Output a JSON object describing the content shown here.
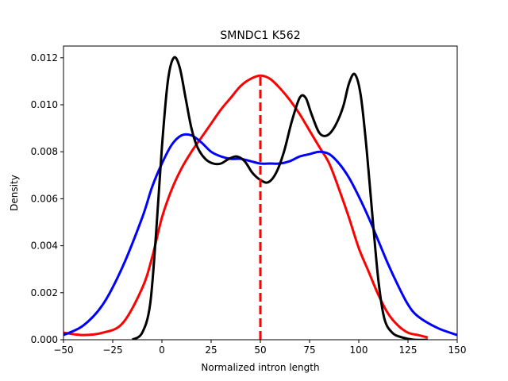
{
  "chart_data": {
    "type": "line",
    "title": "SMNDC1 K562",
    "xlabel": "Normalized intron length",
    "ylabel": "Density",
    "xlim": [
      -50,
      150
    ],
    "ylim": [
      0,
      0.0125
    ],
    "xticks": [
      "−50",
      "−25",
      "0",
      "25",
      "50",
      "75",
      "100",
      "125",
      "150"
    ],
    "xtick_values": [
      -50,
      -25,
      0,
      25,
      50,
      75,
      100,
      125,
      150
    ],
    "yticks": [
      "0.000",
      "0.002",
      "0.004",
      "0.006",
      "0.008",
      "0.010",
      "0.012"
    ],
    "ytick_values": [
      0,
      0.002,
      0.004,
      0.006,
      0.008,
      0.01,
      0.012
    ],
    "grid": false,
    "legend": "none",
    "series": [
      {
        "color": "#ff0000",
        "points": [
          [
            -50,
            0.0003
          ],
          [
            -40,
            0.0002
          ],
          [
            -30,
            0.0003
          ],
          [
            -20,
            0.0007
          ],
          [
            -10,
            0.0022
          ],
          [
            -5,
            0.0035
          ],
          [
            0,
            0.0052
          ],
          [
            5,
            0.0064
          ],
          [
            10,
            0.0073
          ],
          [
            15,
            0.008
          ],
          [
            20,
            0.0086
          ],
          [
            25,
            0.0092
          ],
          [
            30,
            0.0098
          ],
          [
            35,
            0.0103
          ],
          [
            40,
            0.0108
          ],
          [
            45,
            0.0111
          ],
          [
            50,
            0.01124
          ],
          [
            55,
            0.0111
          ],
          [
            60,
            0.0107
          ],
          [
            65,
            0.0102
          ],
          [
            70,
            0.0096
          ],
          [
            75,
            0.0089
          ],
          [
            80,
            0.0082
          ],
          [
            85,
            0.0075
          ],
          [
            90,
            0.0064
          ],
          [
            95,
            0.0052
          ],
          [
            100,
            0.0039
          ],
          [
            105,
            0.0029
          ],
          [
            110,
            0.0019
          ],
          [
            115,
            0.0011
          ],
          [
            120,
            0.0006
          ],
          [
            125,
            0.0003
          ],
          [
            130,
            0.0002
          ],
          [
            135,
            0.0001
          ]
        ]
      },
      {
        "color": "#0000ff",
        "points": [
          [
            -50,
            0.0002
          ],
          [
            -40,
            0.0006
          ],
          [
            -30,
            0.0015
          ],
          [
            -20,
            0.0031
          ],
          [
            -10,
            0.0052
          ],
          [
            -5,
            0.0065
          ],
          [
            0,
            0.0075
          ],
          [
            5,
            0.0083
          ],
          [
            10,
            0.0087
          ],
          [
            15,
            0.0087
          ],
          [
            20,
            0.0084
          ],
          [
            25,
            0.008
          ],
          [
            30,
            0.0078
          ],
          [
            35,
            0.0077
          ],
          [
            40,
            0.0077
          ],
          [
            45,
            0.0076
          ],
          [
            50,
            0.0075
          ],
          [
            55,
            0.0075
          ],
          [
            60,
            0.0075
          ],
          [
            65,
            0.0076
          ],
          [
            70,
            0.0078
          ],
          [
            75,
            0.0079
          ],
          [
            80,
            0.008
          ],
          [
            85,
            0.0079
          ],
          [
            90,
            0.0075
          ],
          [
            95,
            0.0069
          ],
          [
            100,
            0.0061
          ],
          [
            105,
            0.0052
          ],
          [
            110,
            0.0042
          ],
          [
            115,
            0.0032
          ],
          [
            120,
            0.0023
          ],
          [
            125,
            0.0015
          ],
          [
            130,
            0.001
          ],
          [
            140,
            0.0005
          ],
          [
            150,
            0.0002
          ]
        ]
      },
      {
        "color": "#000000",
        "points": [
          [
            -15,
            0.0
          ],
          [
            -10,
            0.0003
          ],
          [
            -6,
            0.0015
          ],
          [
            -3,
            0.0045
          ],
          [
            0,
            0.0082
          ],
          [
            3,
            0.011
          ],
          [
            6,
            0.012
          ],
          [
            9,
            0.0116
          ],
          [
            12,
            0.0103
          ],
          [
            15,
            0.009
          ],
          [
            18,
            0.0082
          ],
          [
            22,
            0.0077
          ],
          [
            26,
            0.0075
          ],
          [
            30,
            0.0075
          ],
          [
            34,
            0.0077
          ],
          [
            38,
            0.0078
          ],
          [
            42,
            0.0076
          ],
          [
            46,
            0.0071
          ],
          [
            50,
            0.0068
          ],
          [
            54,
            0.0067
          ],
          [
            58,
            0.0071
          ],
          [
            62,
            0.008
          ],
          [
            66,
            0.0093
          ],
          [
            70,
            0.0103
          ],
          [
            73,
            0.0103
          ],
          [
            76,
            0.0096
          ],
          [
            80,
            0.0088
          ],
          [
            84,
            0.0087
          ],
          [
            88,
            0.0091
          ],
          [
            92,
            0.0099
          ],
          [
            95,
            0.0109
          ],
          [
            98,
            0.0113
          ],
          [
            101,
            0.0104
          ],
          [
            104,
            0.0081
          ],
          [
            107,
            0.0052
          ],
          [
            110,
            0.0025
          ],
          [
            113,
            0.0009
          ],
          [
            117,
            0.0003
          ],
          [
            122,
            0.0001
          ],
          [
            128,
            0.0
          ],
          [
            135,
            0.0
          ]
        ]
      }
    ],
    "vline": {
      "x": 50,
      "ymax": 0.01124,
      "color": "#ff0000",
      "style": "dashed"
    }
  }
}
